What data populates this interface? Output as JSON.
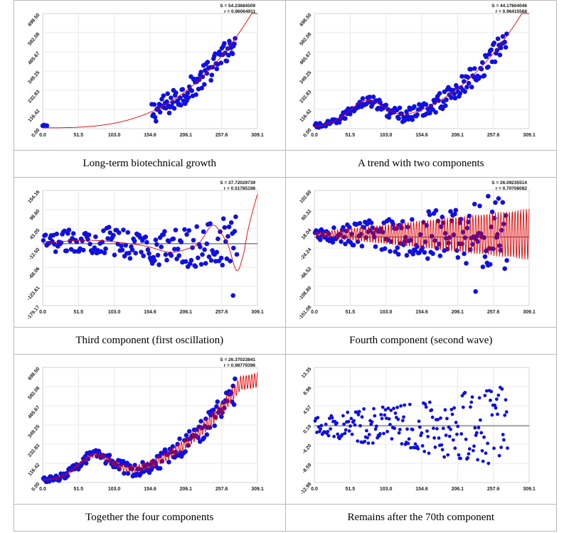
{
  "chart_data": [
    {
      "type": "scatter",
      "caption": "Long-term biotechnical growth",
      "stats": {
        "s": "S = 54.23684509",
        "r": "r = 0.96064911"
      },
      "xlim": [
        0,
        309.1
      ],
      "ylim": [
        0,
        698.5
      ],
      "xticks": [
        "0.0",
        "51.5",
        "103.0",
        "154.6",
        "206.1",
        "257.6",
        "309.1"
      ],
      "yticks": [
        "0.00",
        "116.42",
        "232.83",
        "349.25",
        "465.67",
        "582.08",
        "698.50"
      ],
      "zero_line": false,
      "model": "growth",
      "marker_color": "#1010e0",
      "line_color": "#e00000"
    },
    {
      "type": "scatter",
      "caption": "A trend with two components",
      "stats": {
        "s": "S = 44.17604046",
        "r": "r = 0.96415568"
      },
      "xlim": [
        0,
        309.1
      ],
      "ylim": [
        0,
        698.5
      ],
      "xticks": [
        "0.0",
        "51.5",
        "103.0",
        "154.6",
        "206.1",
        "257.6",
        "309.1"
      ],
      "yticks": [
        "0.00",
        "116.42",
        "232.83",
        "349.25",
        "465.67",
        "582.08",
        "698.50"
      ],
      "zero_line": false,
      "model": "trend2",
      "marker_color": "#1010e0",
      "line_color": "#e00000"
    },
    {
      "type": "scatter",
      "caption": "Third component (first oscillation)",
      "stats": {
        "s": "S = 37.72029739",
        "r": "r = 0.51785198"
      },
      "xlim": [
        0,
        309.1
      ],
      "ylim": [
        -179.17,
        154.16
      ],
      "xticks": [
        "0.0",
        "51.5",
        "103.0",
        "154.6",
        "206.1",
        "257.6",
        "309.1"
      ],
      "yticks": [
        "-179.17",
        "-123.61",
        "-68.06",
        "-12.50",
        "43.05",
        "98.60",
        "154.16"
      ],
      "zero_line": true,
      "model": "osc1",
      "marker_color": "#1010e0",
      "line_color": "#e00000"
    },
    {
      "type": "scatter",
      "caption": "Fourth component (second wave)",
      "stats": {
        "s": "S = 26.09235514",
        "r": "r = 0.70708082"
      },
      "xlim": [
        0,
        309.1
      ],
      "ylim": [
        -151.08,
        102.6
      ],
      "xticks": [
        "0.0",
        "51.5",
        "103.0",
        "154.6",
        "206.1",
        "257.6",
        "309.1"
      ],
      "yticks": [
        "-151.08",
        "-108.80",
        "-66.52",
        "-24.24",
        "18.04",
        "60.32",
        "102.60"
      ],
      "zero_line": true,
      "model": "wave2",
      "marker_color": "#1010e0",
      "line_color": "#e00000"
    },
    {
      "type": "scatter",
      "caption": "Together the four components",
      "stats": {
        "s": "S = 26.37023841",
        "r": "r = 0.98779396"
      },
      "xlim": [
        0,
        309.1
      ],
      "ylim": [
        0,
        698.5
      ],
      "xticks": [
        "0.0",
        "51.5",
        "103.0",
        "154.6",
        "206.1",
        "257.6",
        "309.1"
      ],
      "yticks": [
        "0.00",
        "116.42",
        "232.83",
        "349.25",
        "465.67",
        "582.08",
        "698.50"
      ],
      "zero_line": false,
      "model": "combined",
      "marker_color": "#1010e0",
      "line_color": "#e00000"
    },
    {
      "type": "scatter",
      "caption": "Remains after the 70th component",
      "stats": {
        "s": "",
        "r": ""
      },
      "xlim": [
        0,
        309.1
      ],
      "ylim": [
        -12.98,
        13.35
      ],
      "xticks": [
        "0.0",
        "51.5",
        "103.0",
        "154.6",
        "206.1",
        "257.6",
        "309.1"
      ],
      "yticks": [
        "-12.98",
        "-8.59",
        "-4.20",
        "0.19",
        "4.57",
        "8.96",
        "13.35"
      ],
      "zero_line": true,
      "model": "residual",
      "marker_color": "#1010e0",
      "line_color": "#e00000"
    }
  ]
}
